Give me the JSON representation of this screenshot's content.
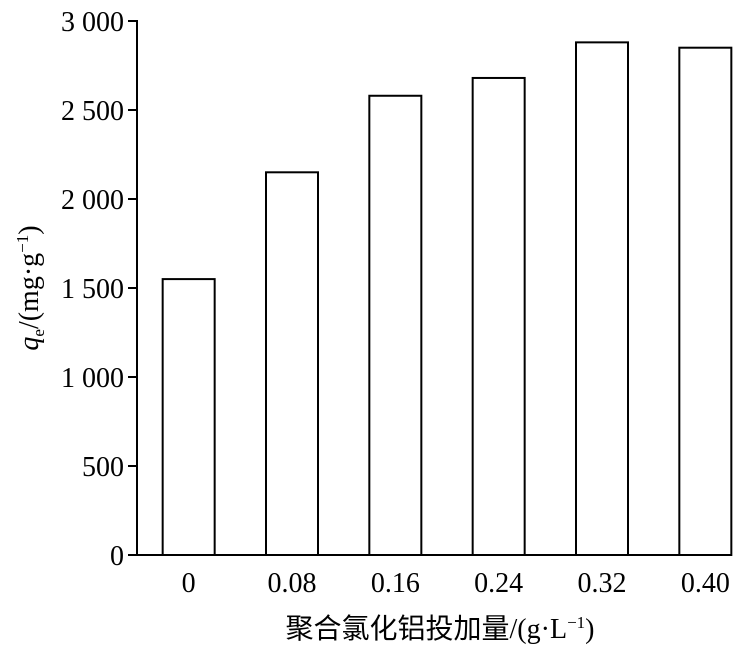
{
  "chart_data": {
    "type": "bar",
    "categories": [
      "0",
      "0.08",
      "0.16",
      "0.24",
      "0.32",
      "0.40"
    ],
    "values": [
      1550,
      2150,
      2580,
      2680,
      2880,
      2850
    ],
    "color": "#ffffff",
    "ylim": [
      0,
      3000
    ],
    "yticks": [
      0,
      500,
      {
        "value": 1000,
        "label": "1 000"
      },
      {
        "value": 1500,
        "label": "1 500"
      },
      {
        "value": 2000,
        "label": "2 000"
      },
      {
        "value": 2500,
        "label": "2 500"
      },
      {
        "value": 3000,
        "label": "3 000"
      }
    ],
    "y_label": [
      "q",
      "e",
      "/(mg·g",
      "−1",
      ")"
    ],
    "x_label": [
      "聚合氯化铝投加量/(g·L",
      "−1",
      ")"
    ],
    "grid": false
  }
}
